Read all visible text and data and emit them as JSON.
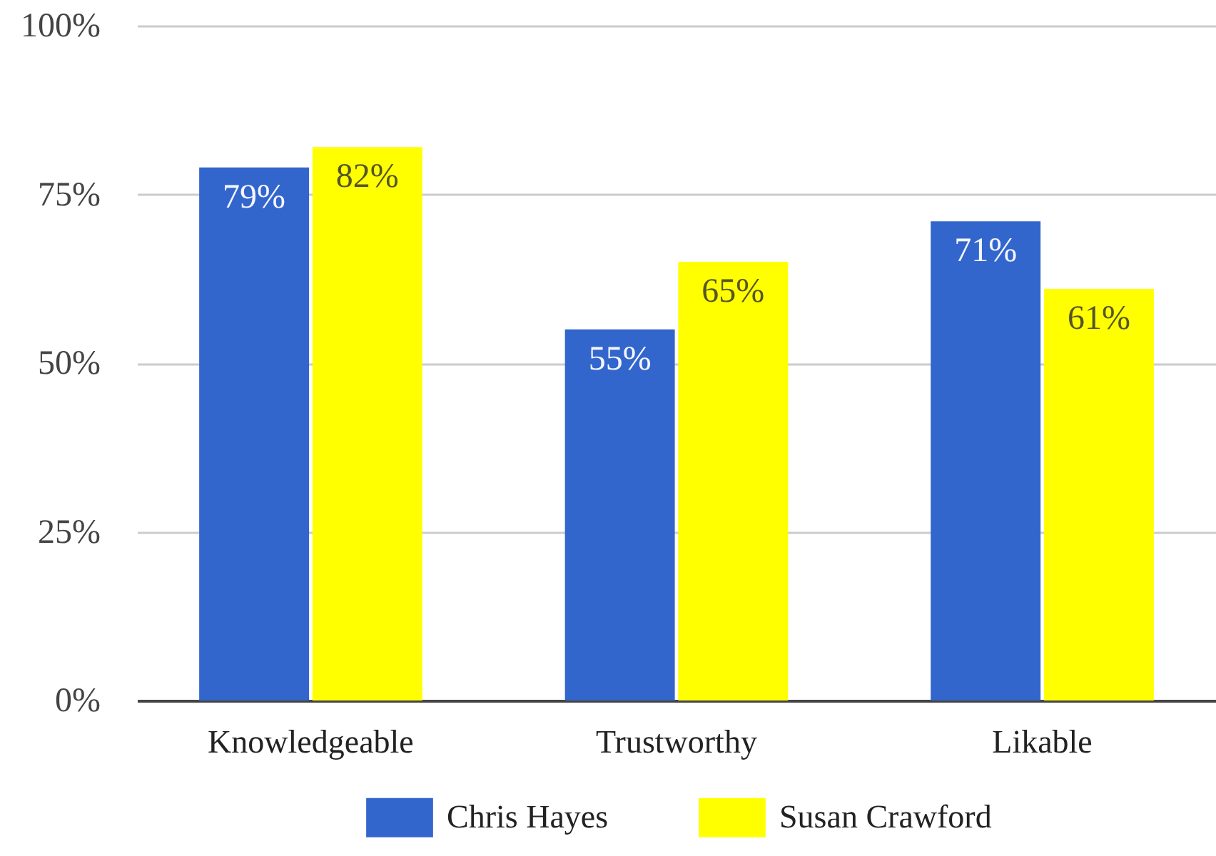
{
  "chart_data": {
    "type": "bar",
    "categories": [
      "Knowledgeable",
      "Trustworthy",
      "Likable"
    ],
    "series": [
      {
        "name": "Chris Hayes",
        "color": "#3366cc",
        "values": [
          79,
          55,
          71
        ],
        "value_labels": [
          "79%",
          "55%",
          "71%"
        ]
      },
      {
        "name": "Susan Crawford",
        "color": "#ffff00",
        "values": [
          82,
          65,
          61
        ],
        "value_labels": [
          "82%",
          "65%",
          "61%"
        ]
      }
    ],
    "ylim": [
      0,
      100
    ],
    "yticks": [
      {
        "value": 0,
        "label": "0%"
      },
      {
        "value": 25,
        "label": "25%"
      },
      {
        "value": 50,
        "label": "50%"
      },
      {
        "value": 75,
        "label": "75%"
      },
      {
        "value": 100,
        "label": "100%"
      }
    ],
    "grid": "y",
    "legend": "bottom"
  }
}
